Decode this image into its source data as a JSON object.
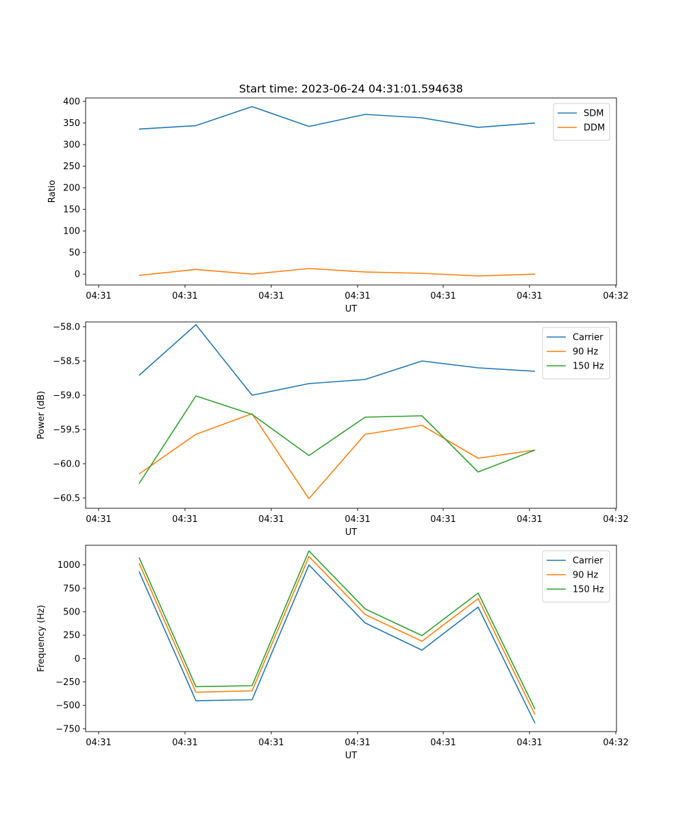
{
  "chart_data": [
    {
      "type": "line",
      "title": "Start time: 2023-06-24 04:31:01.594638",
      "xlabel": "UT",
      "ylabel": "Ratio",
      "x_tick_labels": [
        "04:31",
        "04:31",
        "04:31",
        "04:31",
        "04:31",
        "04:31",
        "04:32"
      ],
      "y_ticks": [
        0,
        50,
        100,
        150,
        200,
        250,
        300,
        350,
        400
      ],
      "ylim": [
        -25,
        408
      ],
      "legend": "top-right",
      "grid": false,
      "series": [
        {
          "name": "SDM",
          "color": "#1f77b4",
          "values": [
            336,
            344,
            388,
            342,
            370,
            362,
            340,
            350
          ]
        },
        {
          "name": "DDM",
          "color": "#ff7f0e",
          "values": [
            -3,
            11,
            0,
            13,
            5,
            2,
            -4,
            0
          ]
        }
      ]
    },
    {
      "type": "line",
      "title": "",
      "xlabel": "UT",
      "ylabel": "Power (dB)",
      "x_tick_labels": [
        "04:31",
        "04:31",
        "04:31",
        "04:31",
        "04:31",
        "04:31",
        "04:32"
      ],
      "y_ticks": [
        -60.5,
        -60.0,
        -59.5,
        -59.0,
        -58.5,
        -58.0
      ],
      "y_tick_labels": [
        "−60.5",
        "−60.0",
        "−59.5",
        "−59.0",
        "−58.5",
        "−58.0"
      ],
      "ylim": [
        -60.65,
        -57.93
      ],
      "legend": "top-right",
      "grid": false,
      "series": [
        {
          "name": "Carrier",
          "color": "#1f77b4",
          "values": [
            -58.71,
            -57.97,
            -59.0,
            -58.83,
            -58.77,
            -58.5,
            -58.6,
            -58.65
          ]
        },
        {
          "name": "90 Hz",
          "color": "#ff7f0e",
          "values": [
            -60.15,
            -59.57,
            -59.27,
            -60.51,
            -59.57,
            -59.44,
            -59.92,
            -59.8
          ]
        },
        {
          "name": "150 Hz",
          "color": "#2ca02c",
          "values": [
            -60.29,
            -59.01,
            -59.28,
            -59.88,
            -59.32,
            -59.3,
            -60.12,
            -59.8
          ]
        }
      ]
    },
    {
      "type": "line",
      "title": "",
      "xlabel": "UT",
      "ylabel": "Frequency (Hz)",
      "x_tick_labels": [
        "04:31",
        "04:31",
        "04:31",
        "04:31",
        "04:31",
        "04:31",
        "04:32"
      ],
      "y_ticks": [
        -750,
        -500,
        -250,
        0,
        250,
        500,
        750,
        1000
      ],
      "y_tick_labels": [
        "−750",
        "−500",
        "−250",
        "0",
        "250",
        "500",
        "750",
        "1000"
      ],
      "ylim": [
        -780,
        1210
      ],
      "legend": "top-right",
      "grid": false,
      "series": [
        {
          "name": "Carrier",
          "color": "#1f77b4",
          "values": [
            930,
            -450,
            -440,
            1000,
            380,
            90,
            550,
            -690
          ]
        },
        {
          "name": "90 Hz",
          "color": "#ff7f0e",
          "values": [
            1020,
            -360,
            -345,
            1090,
            470,
            185,
            640,
            -600
          ]
        },
        {
          "name": "150 Hz",
          "color": "#2ca02c",
          "values": [
            1080,
            -300,
            -290,
            1150,
            530,
            245,
            700,
            -540
          ]
        }
      ]
    }
  ]
}
